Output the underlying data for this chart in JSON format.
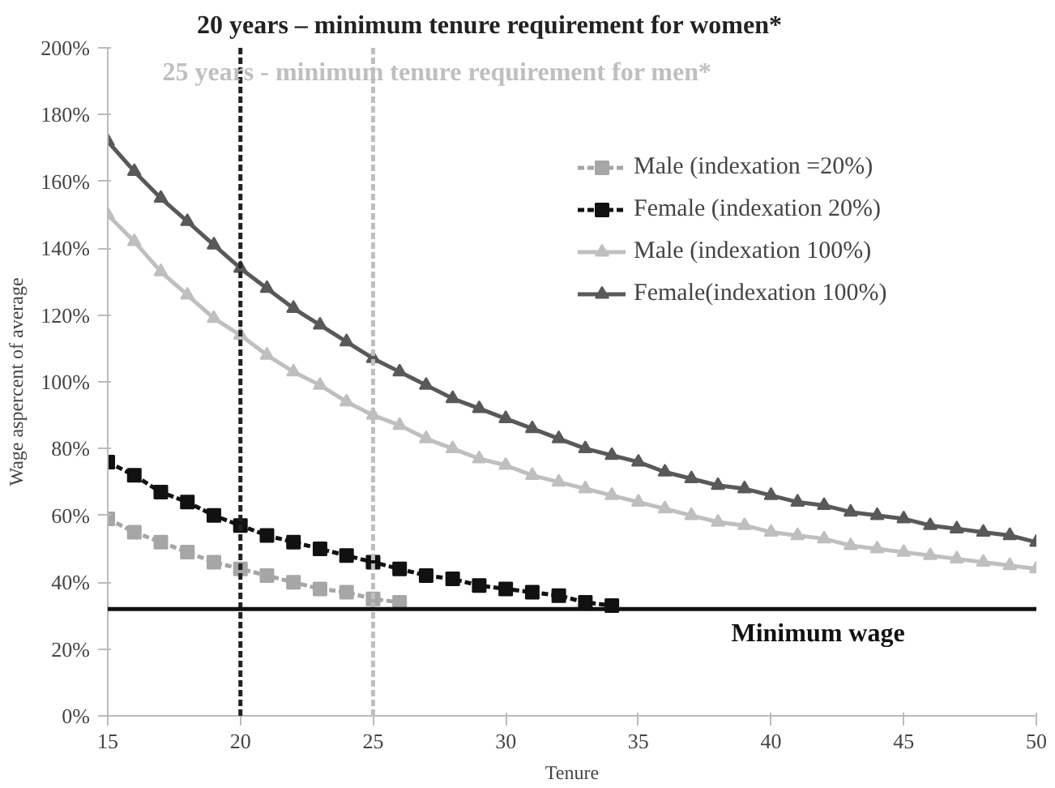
{
  "chart_data": {
    "type": "line",
    "xlabel": "Tenure",
    "ylabel": "Wage aspercent of average",
    "x": [
      15,
      16,
      17,
      18,
      19,
      20,
      21,
      22,
      23,
      24,
      25,
      26,
      27,
      28,
      29,
      30,
      31,
      32,
      33,
      34,
      35,
      36,
      37,
      38,
      39,
      40,
      41,
      42,
      43,
      44,
      45,
      46,
      47,
      48,
      49,
      50
    ],
    "series": [
      {
        "name": "Male (indexation =20%)",
        "color": "#a6a6a6",
        "marker": "square",
        "line_style": "dashed",
        "x": [
          15,
          16,
          17,
          18,
          19,
          20,
          21,
          22,
          23,
          24,
          25,
          26
        ],
        "values": [
          59,
          55,
          52,
          49,
          46,
          44,
          42,
          40,
          38,
          37,
          35,
          34
        ]
      },
      {
        "name": "Female (indexation 20%)",
        "color": "#111111",
        "marker": "square",
        "line_style": "dashed",
        "x": [
          15,
          16,
          17,
          18,
          19,
          20,
          21,
          22,
          23,
          24,
          25,
          26,
          27,
          28,
          29,
          30,
          31,
          32,
          33,
          34
        ],
        "values": [
          76,
          72,
          67,
          64,
          60,
          57,
          54,
          52,
          50,
          48,
          46,
          44,
          42,
          41,
          39,
          38,
          37,
          36,
          34,
          33
        ]
      },
      {
        "name": "Male (indexation 100%)",
        "color": "#bfbfbf",
        "marker": "triangle",
        "line_style": "solid",
        "values": [
          150,
          142,
          133,
          126,
          119,
          114,
          108,
          103,
          99,
          94,
          90,
          87,
          83,
          80,
          77,
          75,
          72,
          70,
          68,
          66,
          64,
          62,
          60,
          58,
          57,
          55,
          54,
          53,
          51,
          50,
          49,
          48,
          47,
          46,
          45,
          44
        ]
      },
      {
        "name": "Female(indexation 100%)",
        "color": "#595959",
        "marker": "triangle",
        "line_style": "solid",
        "values": [
          172,
          163,
          155,
          148,
          141,
          134,
          128,
          122,
          117,
          112,
          107,
          103,
          99,
          95,
          92,
          89,
          86,
          83,
          80,
          78,
          76,
          73,
          71,
          69,
          68,
          66,
          64,
          63,
          61,
          60,
          59,
          57,
          56,
          55,
          54,
          52
        ]
      }
    ],
    "xlim": [
      15,
      50
    ],
    "xticks": [
      15,
      20,
      25,
      30,
      35,
      40,
      45,
      50
    ],
    "ylim": [
      0,
      200
    ],
    "yticks": [
      {
        "value": 0,
        "label": "0%"
      },
      {
        "value": 20,
        "label": "20%"
      },
      {
        "value": 40,
        "label": "40%"
      },
      {
        "value": 60,
        "label": "60%"
      },
      {
        "value": 80,
        "label": "80%"
      },
      {
        "value": 100,
        "label": "100%"
      },
      {
        "value": 120,
        "label": "120%"
      },
      {
        "value": 140,
        "label": "140%"
      },
      {
        "value": 160,
        "label": "160%"
      },
      {
        "value": 180,
        "label": "180%"
      },
      {
        "value": 200,
        "label": "200%"
      }
    ],
    "ref_lines": [
      {
        "axis": "x",
        "value": 20,
        "label": "20 years – minimum tenure requirement for women*",
        "color": "#222222",
        "line_style": "dashed"
      },
      {
        "axis": "x",
        "value": 25,
        "label": "25 years - minimum tenure requirement for men*",
        "color": "#bfbfbf",
        "line_style": "dashed"
      },
      {
        "axis": "y",
        "value": 32,
        "label": "Minimum wage",
        "color": "#111111",
        "line_style": "solid"
      }
    ],
    "legend": "right",
    "grid": false
  }
}
